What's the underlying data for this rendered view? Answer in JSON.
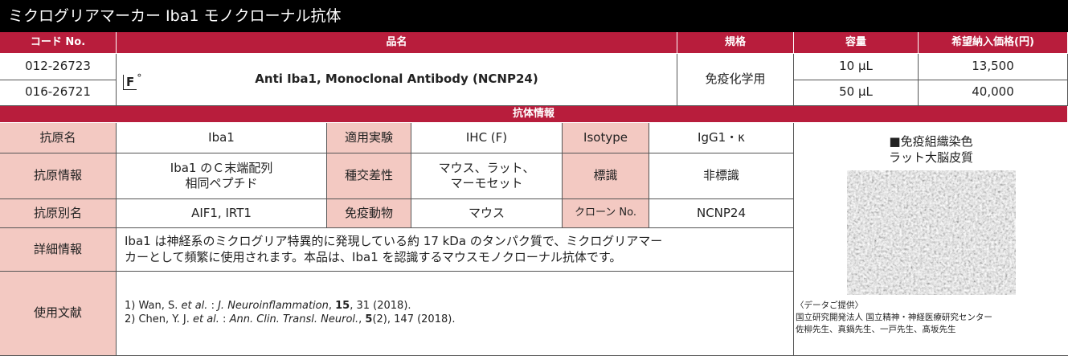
{
  "title": "ミクログリアマーカー Iba1 モノクローナル抗体",
  "product": {
    "headers": [
      "コード No.",
      "品名",
      "規格",
      "容量",
      "希望納入価格(円)"
    ],
    "rows": [
      {
        "code": "012-26723",
        "volume": "10 μL",
        "price": "13,500"
      },
      {
        "code": "016-26721",
        "volume": "50 μL",
        "price": "40,000"
      }
    ],
    "mark": [
      "F",
      "°"
    ],
    "name": "Anti Iba1, Monoclonal Antibody (NCNP24)",
    "spec": "免疫化学用"
  },
  "info": {
    "section": "抗体情報",
    "rows": [
      [
        {
          "label": "抗原名",
          "value": [
            "Iba1"
          ]
        },
        {
          "label": "適用実験",
          "value": [
            "IHC (F)"
          ]
        },
        {
          "label": "Isotype",
          "value": [
            "IgG1・κ"
          ]
        }
      ],
      [
        {
          "label": "抗原情報",
          "value": [
            "Iba1 のＣ末端配列",
            "相同ペプチド"
          ]
        },
        {
          "label": "種交差性",
          "value": [
            "マウス、ラット、",
            "マーモセット"
          ]
        },
        {
          "label": "標識",
          "value": [
            "非標識"
          ]
        }
      ],
      [
        {
          "label": "抗原別名",
          "value": [
            "AIF1, IRT1"
          ]
        },
        {
          "label": "免疫動物",
          "value": [
            "マウス"
          ]
        },
        {
          "label": "クローン No.",
          "value": [
            "NCNP24"
          ]
        }
      ]
    ],
    "detail": {
      "label": "詳細情報",
      "lines": [
        "Iba1 は神経系のミクログリア特異的に発現している約 17 kDa のタンパク質で、ミクログリアマー",
        "カーとして頻繁に使用されます。本品は、Iba1 を認識するマウスモノクローナル抗体です。"
      ]
    },
    "references": {
      "label": "使用文献",
      "items": [
        [
          "1) Wan, S. ",
          "et al.",
          " : ",
          "J. Neuroinflammation",
          ", ",
          "15",
          ", 31 (2018)."
        ],
        [
          "2) Chen, Y. J. ",
          "et al.",
          " : ",
          "Ann. Clin. Transl. Neurol.",
          ", ",
          "5",
          "(2), 147 (2018)."
        ]
      ]
    }
  },
  "image": {
    "caption": [
      "■免疫組織染色",
      "ラット大脳皮質"
    ],
    "credit": [
      "〈データご提供〉",
      "国立研究開発法人 国立精神・神経医療研究センター",
      "佐柳先生、真鍋先生、一戸先生、髙坂先生"
    ]
  }
}
